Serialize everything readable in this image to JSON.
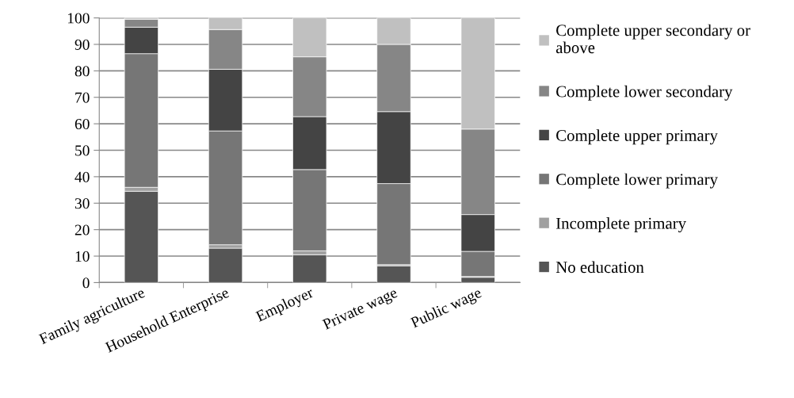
{
  "chart_data": {
    "type": "bar",
    "stacked": true,
    "categories": [
      "Family agriculture",
      "Household Enterprise",
      "Employer",
      "Private wage",
      "Public wage"
    ],
    "series": [
      {
        "name": "No education",
        "color": "#555555",
        "values": [
          34.5,
          13,
          10.5,
          6.3,
          2
        ]
      },
      {
        "name": "Incomplete primary",
        "color": "#a0a0a0",
        "values": [
          1.5,
          1.3,
          1.5,
          0.5,
          0.3
        ]
      },
      {
        "name": "Complete lower primary",
        "color": "#767676",
        "values": [
          50.5,
          43,
          30.7,
          30.6,
          9.5
        ]
      },
      {
        "name": "Complete upper primary",
        "color": "#444444",
        "values": [
          10,
          23.3,
          20,
          27.2,
          13.9
        ]
      },
      {
        "name": "Complete lower secondary",
        "color": "#868686",
        "values": [
          3,
          15,
          22.6,
          25.4,
          32.3
        ]
      },
      {
        "name": "Complete upper secondary or above",
        "color": "#c0c0c0",
        "values": [
          0.5,
          4.5,
          14.7,
          10,
          42
        ]
      }
    ],
    "ylim": [
      0,
      100
    ],
    "yticks": [
      0,
      10,
      20,
      30,
      40,
      50,
      60,
      70,
      80,
      90,
      100
    ],
    "grid": "y",
    "legend": "right"
  }
}
